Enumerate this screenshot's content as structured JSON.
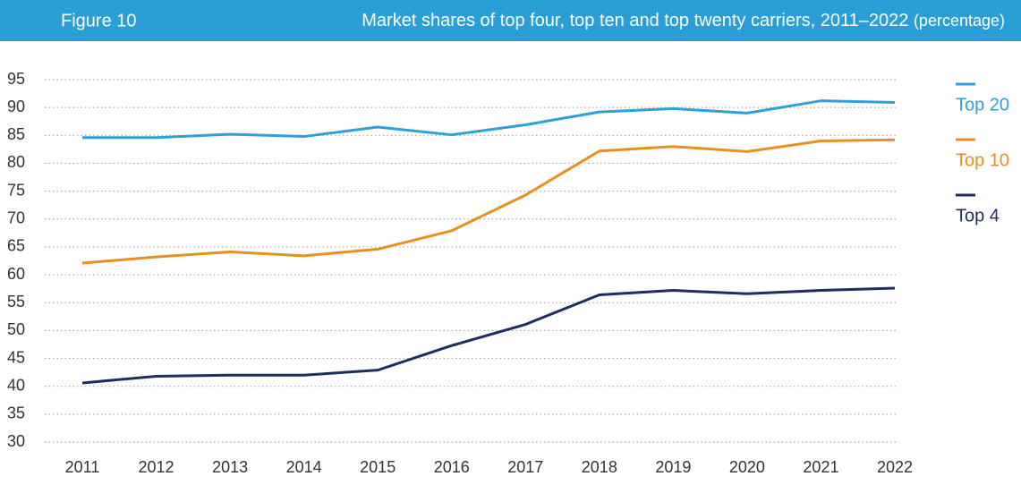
{
  "chart_data": {
    "type": "line",
    "figure_label": "Figure 10",
    "title": "Market shares of top four, top ten and top twenty carriers, 2011–2022",
    "unit": "(percentage)",
    "categories": [
      "2011",
      "2012",
      "2013",
      "2014",
      "2015",
      "2016",
      "2017",
      "2018",
      "2019",
      "2020",
      "2021",
      "2022"
    ],
    "series": [
      {
        "name": "Top 20",
        "color": "#2e9fd8",
        "values": [
          84.6,
          84.6,
          85.2,
          84.8,
          86.5,
          85.1,
          86.9,
          89.2,
          89.8,
          89.0,
          91.2,
          90.9
        ]
      },
      {
        "name": "Top 10",
        "color": "#e8901e",
        "values": [
          62.1,
          63.2,
          64.1,
          63.4,
          64.6,
          67.9,
          74.3,
          82.2,
          83.0,
          82.1,
          84.0,
          84.2
        ]
      },
      {
        "name": "Top 4",
        "color": "#1f2d5c",
        "values": [
          40.6,
          41.8,
          42.0,
          42.0,
          42.9,
          47.3,
          51.1,
          56.4,
          57.2,
          56.6,
          57.2,
          57.6
        ]
      }
    ],
    "ylim": [
      30,
      95
    ],
    "yticks": [
      30,
      35,
      40,
      45,
      50,
      55,
      60,
      65,
      70,
      75,
      80,
      85,
      90,
      95
    ],
    "grid": true,
    "legend": "right"
  }
}
